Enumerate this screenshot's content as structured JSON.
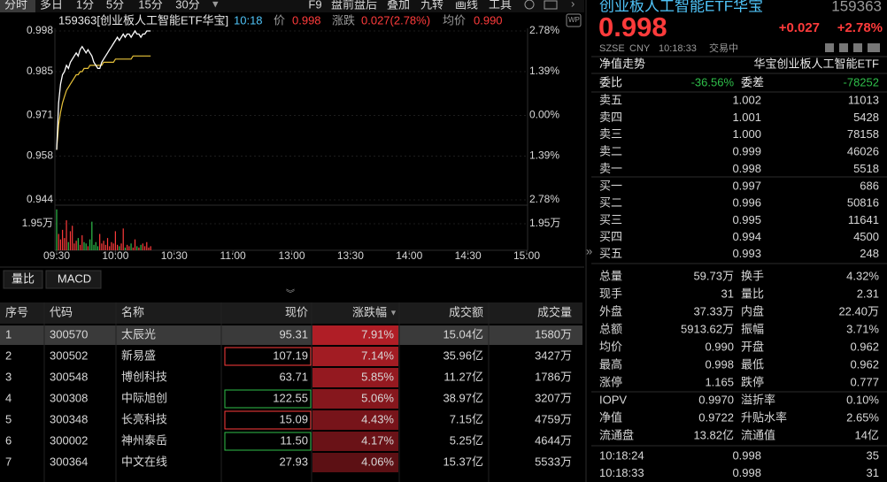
{
  "toolbar": {
    "tabs": [
      "分时",
      "多日",
      "1分",
      "5分",
      "15分",
      "30分"
    ],
    "tools": [
      "F9",
      "盘前盘后",
      "叠加",
      "九转",
      "画线",
      "工具"
    ]
  },
  "chart": {
    "code_name": "159363[创业板人工智能ETF华宝]",
    "time": "10:18",
    "price_label": "价",
    "price": "0.998",
    "change_label": "涨跌",
    "change": "0.027(2.78%)",
    "avg_label": "均价",
    "avg": "0.990",
    "ylim": [
      0.944,
      0.998
    ],
    "yticks": [
      0.998,
      0.985,
      0.971,
      0.958,
      0.944
    ],
    "pct_labels": [
      "2.78%",
      "1.39%",
      "0.00%",
      "1.39%",
      "2.78%"
    ],
    "xticks": [
      "09:30",
      "10:00",
      "10:30",
      "11:00",
      "13:00",
      "13:30",
      "14:00",
      "14:30",
      "15:00"
    ],
    "x": [
      "09:30",
      "09:31",
      "09:32",
      "09:33",
      "09:34",
      "09:35",
      "09:36",
      "09:37",
      "09:38",
      "09:39",
      "09:40",
      "09:41",
      "09:42",
      "09:43",
      "09:44",
      "09:45",
      "09:46",
      "09:47",
      "09:48",
      "09:49",
      "09:50",
      "09:51",
      "09:52",
      "09:53",
      "09:54",
      "09:55",
      "09:56",
      "09:57",
      "09:58",
      "09:59",
      "10:00",
      "10:01",
      "10:02",
      "10:03",
      "10:04",
      "10:05",
      "10:06",
      "10:07",
      "10:08",
      "10:09",
      "10:10",
      "10:11",
      "10:12",
      "10:13",
      "10:14",
      "10:15",
      "10:16",
      "10:17",
      "10:18"
    ],
    "price_series": [
      0.96,
      0.975,
      0.981,
      0.984,
      0.985,
      0.987,
      0.986,
      0.988,
      0.989,
      0.99,
      0.991,
      0.99,
      0.992,
      0.993,
      0.992,
      0.991,
      0.992,
      0.991,
      0.99,
      0.988,
      0.987,
      0.986,
      0.986,
      0.988,
      0.989,
      0.99,
      0.991,
      0.992,
      0.993,
      0.994,
      0.995,
      0.996,
      0.995,
      0.996,
      0.997,
      0.996,
      0.997,
      0.997,
      0.996,
      0.997,
      0.998,
      0.997,
      0.997,
      0.996,
      0.997,
      0.997,
      0.998,
      0.998,
      0.998
    ],
    "avg_series": [
      0.96,
      0.968,
      0.972,
      0.975,
      0.977,
      0.979,
      0.98,
      0.981,
      0.982,
      0.983,
      0.984,
      0.984,
      0.985,
      0.985,
      0.986,
      0.986,
      0.986,
      0.987,
      0.987,
      0.987,
      0.987,
      0.987,
      0.987,
      0.987,
      0.988,
      0.988,
      0.988,
      0.988,
      0.988,
      0.988,
      0.989,
      0.989,
      0.989,
      0.989,
      0.989,
      0.989,
      0.989,
      0.989,
      0.989,
      0.99,
      0.99,
      0.99,
      0.99,
      0.99,
      0.99,
      0.99,
      0.99,
      0.99,
      0.99
    ],
    "volume": {
      "ylim": [
        0,
        30500
      ],
      "yticks": [
        {
          "value": 19500,
          "label": "1.95万"
        }
      ],
      "values": [
        30000,
        12000,
        8000,
        15000,
        9000,
        22000,
        6000,
        14000,
        18000,
        5000,
        7000,
        9000,
        4000,
        11000,
        6000,
        5000,
        3000,
        8000,
        21000,
        4000,
        6000,
        3000,
        12000,
        5000,
        7000,
        4000,
        9000,
        3000,
        6000,
        5000,
        14000,
        4000,
        3000,
        5000,
        16000,
        2000,
        4000,
        3000,
        5000,
        2000,
        8000,
        3000,
        2000,
        4000,
        5000,
        3000,
        6000,
        2000,
        3000
      ]
    }
  },
  "indicator_tabs": [
    "量比",
    "MACD"
  ],
  "table": {
    "headers": [
      "序号",
      "代码",
      "名称",
      "现价",
      "涨跌幅",
      "成交额",
      "成交量"
    ],
    "rows": [
      [
        "1",
        "300570",
        "太辰光",
        "95.31",
        "7.91%",
        "15.04亿",
        "1580万"
      ],
      [
        "2",
        "300502",
        "新易盛",
        "107.19",
        "7.14%",
        "35.96亿",
        "3427万"
      ],
      [
        "3",
        "300548",
        "博创科技",
        "63.71",
        "5.85%",
        "11.27亿",
        "1786万"
      ],
      [
        "4",
        "300308",
        "中际旭创",
        "122.55",
        "5.06%",
        "38.97亿",
        "3207万"
      ],
      [
        "5",
        "300348",
        "长亮科技",
        "15.09",
        "4.43%",
        "7.15亿",
        "4759万"
      ],
      [
        "6",
        "300002",
        "神州泰岳",
        "11.50",
        "4.17%",
        "5.25亿",
        "4644万"
      ],
      [
        "7",
        "300364",
        "中文在线",
        "27.93",
        "4.06%",
        "15.37亿",
        "5533万"
      ]
    ]
  },
  "quote": {
    "name": "创业板人工智能ETF华宝",
    "code": "159363",
    "price": "0.998",
    "change": "+0.027",
    "change_pct": "+2.78%",
    "exchange": "SZSE",
    "currency": "CNY",
    "time": "10:18:33",
    "status": "交易中",
    "nav_trend": "净值走势",
    "fund_name": "华宝创业板人工智能ETF",
    "ratio": [
      "委比",
      "-36.56%",
      "委差",
      "-78252"
    ],
    "asks": [
      [
        "卖五",
        "1.002",
        "11013"
      ],
      [
        "卖四",
        "1.001",
        "5428"
      ],
      [
        "卖三",
        "1.000",
        "78158"
      ],
      [
        "卖二",
        "0.999",
        "46026"
      ],
      [
        "卖一",
        "0.998",
        "5518"
      ]
    ],
    "bids": [
      [
        "买一",
        "0.997",
        "686"
      ],
      [
        "买二",
        "0.996",
        "50816"
      ],
      [
        "买三",
        "0.995",
        "11641"
      ],
      [
        "买四",
        "0.994",
        "4500"
      ],
      [
        "买五",
        "0.993",
        "248"
      ]
    ],
    "stats": [
      [
        "总量",
        "59.73万",
        "换手",
        "4.32%"
      ],
      [
        "现手",
        "31",
        "量比",
        "2.31"
      ],
      [
        "外盘",
        "37.33万",
        "内盘",
        "22.40万"
      ],
      [
        "总额",
        "5913.62万",
        "振幅",
        "3.71%"
      ],
      [
        "均价",
        "0.990",
        "开盘",
        "0.962"
      ],
      [
        "最高",
        "0.998",
        "最低",
        "0.962"
      ],
      [
        "涨停",
        "1.165",
        "跌停",
        "0.777"
      ]
    ],
    "fund_stats": [
      [
        "IOPV",
        "0.9970",
        "溢折率",
        "0.10%"
      ],
      [
        "净值",
        "0.9722",
        "升贴水率",
        "2.65%"
      ],
      [
        "流通盘",
        "13.82亿",
        "流通值",
        "14亿"
      ]
    ],
    "ticks": [
      [
        "10:18:24",
        "0.998",
        "35"
      ],
      [
        "10:18:33",
        "0.998",
        "31"
      ]
    ]
  }
}
